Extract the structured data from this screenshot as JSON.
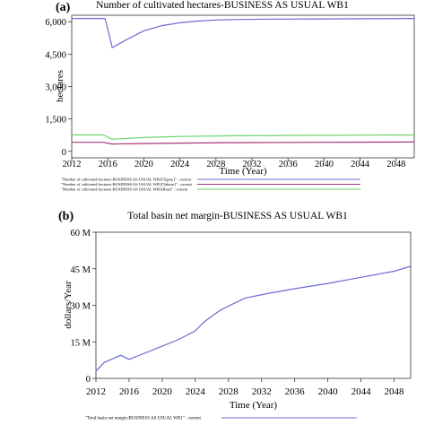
{
  "chart_data": [
    {
      "type": "line",
      "panel_label": "(a)",
      "title": "Number of cultivated hectares-BUSINESS AS USUAL WB1",
      "xlabel": "Time (Year)",
      "ylabel": "hectares",
      "xlim": [
        2012,
        2050
      ],
      "ylim": [
        -300,
        6300
      ],
      "xticks": [
        2012,
        2016,
        2020,
        2024,
        2028,
        2032,
        2036,
        2040,
        2044,
        2048
      ],
      "yticks": [
        0,
        1500,
        3000,
        4500,
        6000
      ],
      "ytick_labels": [
        "0",
        "1,500",
        "3,000",
        "4,500",
        "6,000"
      ],
      "legend_position": "bottom",
      "series": [
        {
          "name": "\"Number of cultivated hectares-BUSINESS AS USUAL WB1[Tigray]\" : current",
          "color": "#6b6bd8",
          "x": [
            2012,
            2015.7,
            2016.5,
            2018,
            2020,
            2022,
            2024,
            2026,
            2028,
            2030,
            2034,
            2040,
            2050
          ],
          "y": [
            6150,
            6150,
            4800,
            5150,
            5580,
            5820,
            5950,
            6030,
            6080,
            6100,
            6120,
            6130,
            6150
          ]
        },
        {
          "name": "\"Number of cultivated hectares-BUSINESS AS USUAL WB1[Tekeze]\" : current",
          "color": "#a8357a",
          "x": [
            2012,
            2015.5,
            2016.5,
            2020,
            2024,
            2030,
            2040,
            2050
          ],
          "y": [
            420,
            420,
            340,
            360,
            380,
            400,
            420,
            430
          ]
        },
        {
          "name": "\"Number of cultivated hectares-BUSINESS AS USUAL WB1[Rest]\" : current",
          "color": "#6cd36c",
          "x": [
            2012,
            2015.5,
            2016.5,
            2020,
            2024,
            2030,
            2040,
            2050
          ],
          "y": [
            760,
            760,
            560,
            640,
            690,
            720,
            740,
            760
          ]
        }
      ]
    },
    {
      "type": "line",
      "panel_label": "(b)",
      "title": "Total basin net margin-BUSINESS AS USUAL WB1",
      "xlabel": "Time (Year)",
      "ylabel": "dollars/Year",
      "xlim": [
        2012,
        2050
      ],
      "ylim": [
        0,
        60000000
      ],
      "xticks": [
        2012,
        2016,
        2020,
        2024,
        2028,
        2032,
        2036,
        2040,
        2044,
        2048
      ],
      "yticks": [
        0,
        15000000,
        30000000,
        45000000,
        60000000
      ],
      "ytick_labels": [
        "0",
        "15 M",
        "30 M",
        "45 M",
        "60 M"
      ],
      "legend_position": "bottom",
      "series": [
        {
          "name": "\"Total basin net margin-BUSINESS AS USUAL WB1\" : current",
          "color": "#6b6bd8",
          "x": [
            2012,
            2013,
            2015,
            2016,
            2018,
            2020,
            2022,
            2024,
            2025,
            2027,
            2030,
            2033,
            2036,
            2040,
            2044,
            2048,
            2050
          ],
          "y": [
            3000000,
            6500000,
            9500000,
            7800000,
            10500000,
            13200000,
            16000000,
            19500000,
            23000000,
            28000000,
            33000000,
            35000000,
            36800000,
            39000000,
            41500000,
            44000000,
            46000000
          ]
        }
      ]
    }
  ]
}
